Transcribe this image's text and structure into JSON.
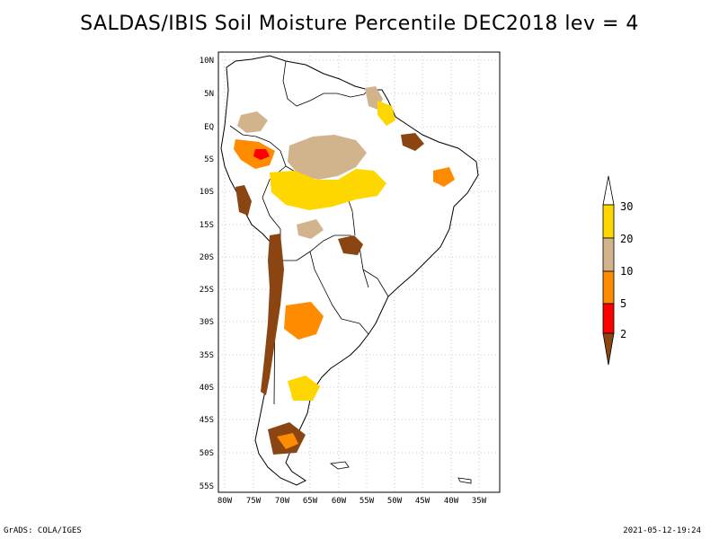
{
  "title": "SALDAS/IBIS Soil Moisture Percentile DEC2018 lev = 4",
  "footer": {
    "left": "GrADS: COLA/IGES",
    "right": "2021-05-12-19:24"
  },
  "map": {
    "region": "South America",
    "lat_ticks": [
      "10N",
      "5N",
      "EQ",
      "5S",
      "10S",
      "15S",
      "20S",
      "25S",
      "30S",
      "35S",
      "40S",
      "45S",
      "50S",
      "55S"
    ],
    "lon_ticks": [
      "80W",
      "75W",
      "70W",
      "65W",
      "60W",
      "55W",
      "50W",
      "45W",
      "40W",
      "35W"
    ],
    "lon_range": [
      -80,
      -34
    ],
    "lat_range": [
      -55,
      12
    ],
    "grid": "dotted"
  },
  "legend": {
    "labels": [
      "30",
      "20",
      "10",
      "5",
      "2"
    ],
    "colors": {
      "above30": "#ffffff",
      "20to30": "#ffd700",
      "10to20": "#d2b48c",
      "5to10": "#ff8c00",
      "2to5": "#ff0000",
      "below2": "#8b4513"
    }
  }
}
